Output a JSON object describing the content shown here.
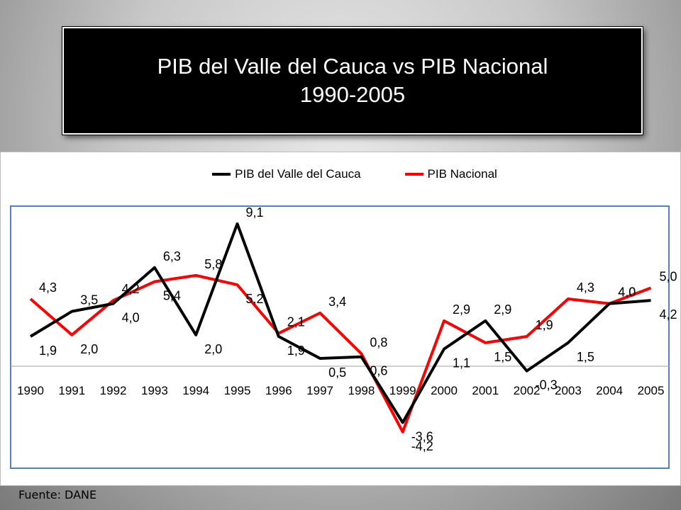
{
  "slide": {
    "title_line1": "PIB del Valle del Cauca vs PIB Nacional",
    "title_line2": "1990-2005",
    "source": "Fuente: DANE"
  },
  "colors": {
    "valle": "#000000",
    "nacional": "#ff0000",
    "plot_border": "#4f81bd"
  },
  "chart_data": {
    "type": "line",
    "title": "",
    "xlabel": "",
    "ylabel": "",
    "categories": [
      "1990",
      "1991",
      "1992",
      "1993",
      "1994",
      "1995",
      "1996",
      "1997",
      "1998",
      "1999",
      "2000",
      "2001",
      "2002",
      "2003",
      "2004",
      "2005"
    ],
    "series": [
      {
        "name": "PIB del Valle del Cauca",
        "values": [
          1.9,
          3.5,
          4.0,
          6.3,
          2.0,
          9.1,
          1.9,
          0.5,
          0.6,
          -3.6,
          1.1,
          2.9,
          -0.3,
          1.5,
          4.0,
          4.2
        ],
        "labels": [
          "1,9",
          "3,5",
          "4,0",
          "6,3",
          "2,0",
          "9,1",
          "1,9",
          "0,5",
          "0,6",
          "-3,6",
          "1,1",
          "2,9",
          "-0,3",
          "1,5",
          "4,0",
          "4,2"
        ]
      },
      {
        "name": "PIB Nacional",
        "values": [
          4.3,
          2.0,
          4.2,
          5.4,
          5.8,
          5.2,
          2.1,
          3.4,
          0.8,
          -4.2,
          2.9,
          1.5,
          1.9,
          4.3,
          4.0,
          5.0
        ],
        "labels": [
          "4,3",
          "2,0",
          "4,2",
          "5,4",
          "5,8",
          "5,2",
          "2,1",
          "3,4",
          "0,8",
          "-4,2",
          "2,9",
          "1,5",
          "1,9",
          "4,3",
          "4,0",
          "5,0"
        ]
      }
    ],
    "ylim": [
      -6,
      11
    ],
    "grid": false,
    "legend": "top"
  }
}
